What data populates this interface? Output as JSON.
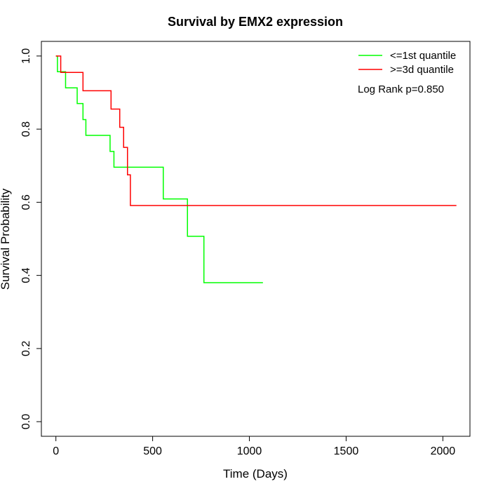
{
  "chart_data": {
    "type": "line",
    "title": "Survival by EMX2 expression",
    "xlabel": "Time (Days)",
    "ylabel": "Survival Probability",
    "xlim": [
      -75,
      2140
    ],
    "ylim": [
      -0.04,
      1.04
    ],
    "x_ticks": [
      0,
      500,
      1000,
      1500,
      2000
    ],
    "y_ticks": [
      0.0,
      0.2,
      0.4,
      0.6,
      0.8,
      1.0
    ],
    "x_tick_labels": [
      "0",
      "500",
      "1000",
      "1500",
      "2000"
    ],
    "y_tick_labels": [
      "0.0",
      "0.2",
      "0.4",
      "0.6",
      "0.8",
      "1.0"
    ],
    "grid": false,
    "legend_position": "top-right",
    "annotation": "Log Rank p=0.850",
    "series": [
      {
        "name": "<=1st quantile",
        "color": "#00ff00",
        "x": [
          0,
          8,
          50,
          110,
          140,
          155,
          280,
          300,
          555,
          680,
          765,
          1070
        ],
        "y": [
          1.0,
          0.957,
          0.913,
          0.87,
          0.826,
          0.783,
          0.739,
          0.696,
          0.609,
          0.507,
          0.38,
          0.38
        ]
      },
      {
        "name": ">=3d quantile",
        "color": "#ff0000",
        "x": [
          0,
          25,
          140,
          285,
          330,
          350,
          370,
          385,
          390,
          2070
        ],
        "y": [
          1.0,
          0.955,
          0.905,
          0.855,
          0.805,
          0.75,
          0.675,
          0.591,
          0.591,
          0.591
        ]
      }
    ]
  }
}
